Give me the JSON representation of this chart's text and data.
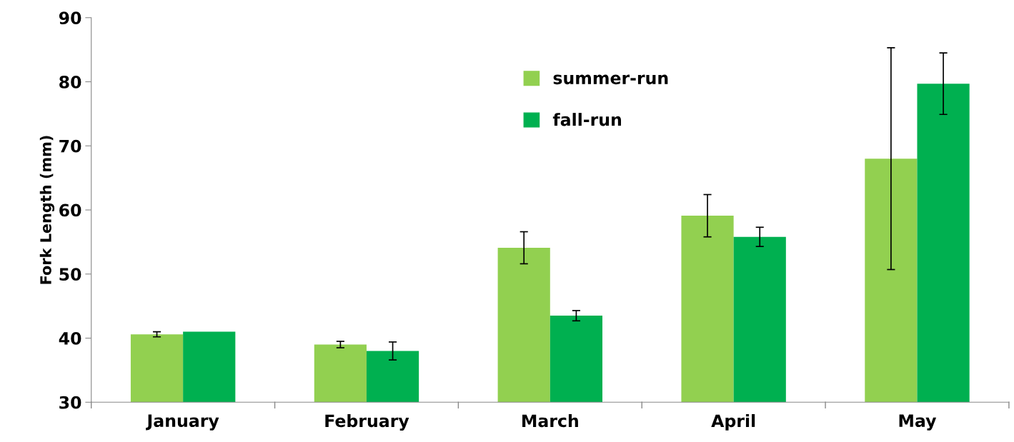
{
  "chart_data": {
    "type": "bar",
    "ylabel": "Fork Length (mm)",
    "categories": [
      "January",
      "February",
      "March",
      "April",
      "May"
    ],
    "series": [
      {
        "name": "summer-run",
        "color": "#92d050",
        "values": [
          40.6,
          39.0,
          54.1,
          59.1,
          68.0
        ],
        "errors": [
          0.4,
          0.5,
          2.5,
          3.3,
          17.3
        ]
      },
      {
        "name": "fall-run",
        "color": "#00b050",
        "values": [
          41.0,
          38.0,
          43.5,
          55.8,
          79.7
        ],
        "errors": [
          null,
          1.4,
          0.8,
          1.5,
          4.8
        ]
      }
    ],
    "ylim": [
      30,
      90
    ],
    "yticks": [
      30,
      40,
      50,
      60,
      70,
      80,
      90
    ],
    "grid": false,
    "legend": "top"
  }
}
